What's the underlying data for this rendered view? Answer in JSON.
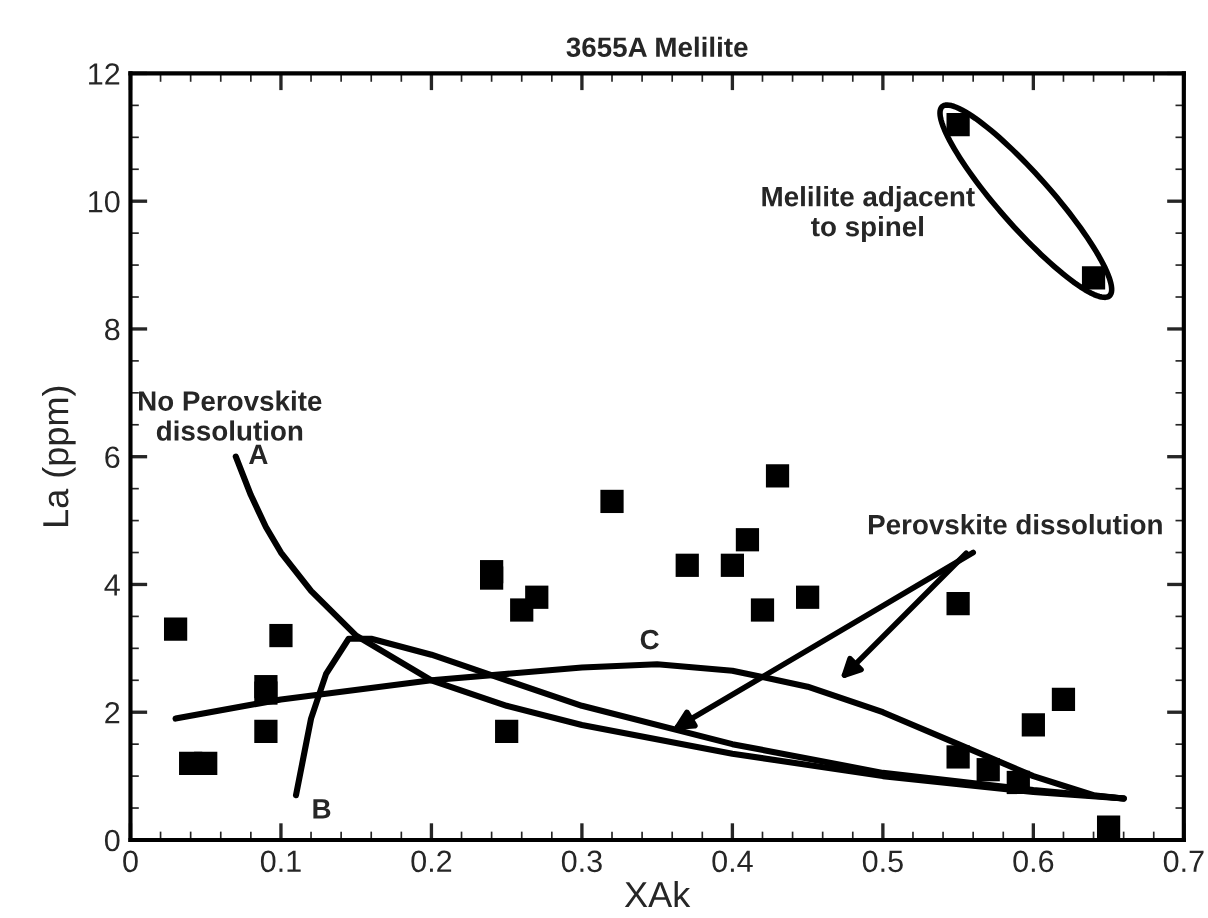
{
  "chart_data": {
    "type": "scatter",
    "title": "3655A Melilite",
    "xlabel": "XAk",
    "ylabel": "La (ppm)",
    "xlim": [
      0,
      0.7
    ],
    "xticks": [
      0,
      0.1,
      0.2,
      0.3,
      0.4,
      0.5,
      0.6,
      0.7
    ],
    "ylim": [
      0,
      12
    ],
    "yticks": [
      0,
      2,
      4,
      6,
      8,
      10,
      12
    ],
    "grid": false,
    "legend": false,
    "series": [
      {
        "color": "#000000",
        "marker": "square",
        "x": [
          0.03,
          0.04,
          0.05,
          0.09,
          0.09,
          0.09,
          0.1,
          0.24,
          0.24,
          0.25,
          0.26,
          0.27,
          0.32,
          0.37,
          0.4,
          0.41,
          0.42,
          0.43,
          0.45,
          0.55,
          0.55,
          0.57,
          0.59,
          0.6,
          0.62,
          0.65,
          0.55,
          0.64
        ],
        "values": [
          3.3,
          1.2,
          1.2,
          2.4,
          2.3,
          1.7,
          3.2,
          4.2,
          4.1,
          1.7,
          3.6,
          3.8,
          5.3,
          4.3,
          4.3,
          4.7,
          3.6,
          5.7,
          3.8,
          3.7,
          1.3,
          1.1,
          0.9,
          1.8,
          2.2,
          0.2,
          11.2,
          8.8
        ]
      },
      {
        "type": "line",
        "color": "#000000",
        "line_style": "solid",
        "x": [
          0.07,
          0.08,
          0.09,
          0.1,
          0.12,
          0.15,
          0.2,
          0.25,
          0.3,
          0.4,
          0.5,
          0.6,
          0.66
        ],
        "values": [
          6.0,
          5.4,
          4.9,
          4.5,
          3.9,
          3.2,
          2.5,
          2.1,
          1.8,
          1.35,
          1.0,
          0.75,
          0.65
        ]
      },
      {
        "type": "line",
        "color": "#000000",
        "line_style": "solid",
        "x": [
          0.11,
          0.115,
          0.12,
          0.13,
          0.145,
          0.16,
          0.2,
          0.25,
          0.3,
          0.4,
          0.5,
          0.6,
          0.66
        ],
        "values": [
          0.7,
          1.3,
          1.9,
          2.6,
          3.15,
          3.15,
          2.9,
          2.5,
          2.1,
          1.5,
          1.05,
          0.78,
          0.65
        ]
      },
      {
        "type": "line",
        "color": "#000000",
        "line_style": "solid",
        "x": [
          0.03,
          0.1,
          0.2,
          0.3,
          0.35,
          0.4,
          0.45,
          0.5,
          0.55,
          0.6,
          0.64,
          0.66
        ],
        "values": [
          1.9,
          2.2,
          2.5,
          2.7,
          2.75,
          2.65,
          2.4,
          2.0,
          1.5,
          1.0,
          0.7,
          0.65
        ]
      }
    ],
    "annotations": [
      "A",
      "B",
      "C",
      "No Perovskite\ndissolution",
      {
        "text": "Perovskite dissolution",
        "x": 0.36,
        "y": 1.72
      },
      "Melilite adjacent\nto spinel"
    ]
  }
}
